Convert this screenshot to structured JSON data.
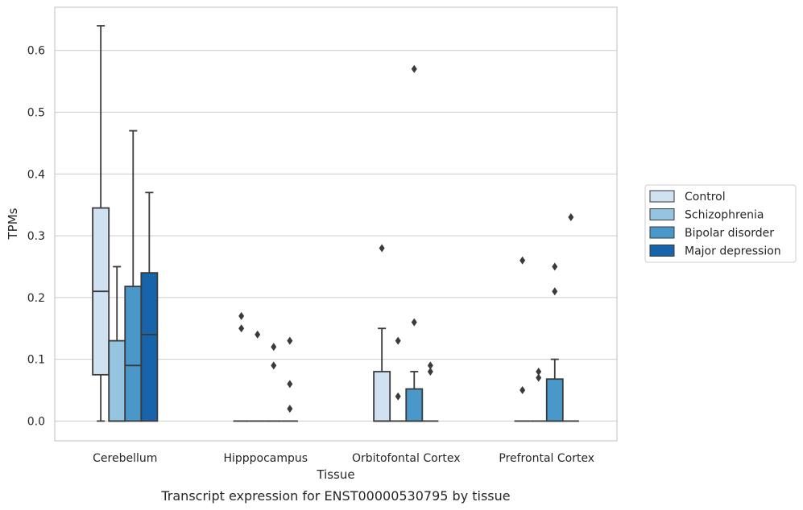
{
  "chart_data": {
    "type": "box",
    "title": "",
    "caption": "Transcript expression for ENST00000530795 by tissue",
    "xlabel": "Tissue",
    "ylabel": "TPMs",
    "ylim": [
      -0.032,
      0.67
    ],
    "yticks": [
      0.0,
      0.1,
      0.2,
      0.3,
      0.4,
      0.5,
      0.6
    ],
    "ytick_labels": [
      "0.0",
      "0.1",
      "0.2",
      "0.3",
      "0.4",
      "0.5",
      "0.6"
    ],
    "grid": "horizontal",
    "legend_position": "right",
    "categories": [
      "Cerebellum",
      "Hipppocampus",
      "Orbitofontal Cortex",
      "Prefrontal Cortex"
    ],
    "series": [
      {
        "name": "Control",
        "color": "#d0e1f2",
        "boxes": [
          {
            "whislo": 0.0,
            "q1": 0.075,
            "med": 0.21,
            "q3": 0.345,
            "whishi": 0.64,
            "fliers": []
          },
          {
            "whislo": 0.0,
            "q1": 0.0,
            "med": 0.0,
            "q3": 0.0,
            "whishi": 0.0,
            "fliers": [
              0.17,
              0.15
            ]
          },
          {
            "whislo": 0.0,
            "q1": 0.0,
            "med": 0.0,
            "q3": 0.08,
            "whishi": 0.15,
            "fliers": [
              0.28
            ]
          },
          {
            "whislo": 0.0,
            "q1": 0.0,
            "med": 0.0,
            "q3": 0.0,
            "whishi": 0.0,
            "fliers": [
              0.26,
              0.05
            ]
          }
        ]
      },
      {
        "name": "Schizophrenia",
        "color": "#94c4df",
        "boxes": [
          {
            "whislo": 0.0,
            "q1": 0.0,
            "med": 0.0,
            "q3": 0.13,
            "whishi": 0.25,
            "fliers": []
          },
          {
            "whislo": 0.0,
            "q1": 0.0,
            "med": 0.0,
            "q3": 0.0,
            "whishi": 0.0,
            "fliers": [
              0.14
            ]
          },
          {
            "whislo": 0.0,
            "q1": 0.0,
            "med": 0.0,
            "q3": 0.0,
            "whishi": 0.0,
            "fliers": [
              0.13,
              0.04
            ]
          },
          {
            "whislo": 0.0,
            "q1": 0.0,
            "med": 0.0,
            "q3": 0.0,
            "whishi": 0.0,
            "fliers": [
              0.08,
              0.07
            ]
          }
        ]
      },
      {
        "name": "Bipolar disorder",
        "color": "#4a98c9",
        "boxes": [
          {
            "whislo": 0.0,
            "q1": 0.0,
            "med": 0.09,
            "q3": 0.218,
            "whishi": 0.47,
            "fliers": []
          },
          {
            "whislo": 0.0,
            "q1": 0.0,
            "med": 0.0,
            "q3": 0.0,
            "whishi": 0.0,
            "fliers": [
              0.12,
              0.09
            ]
          },
          {
            "whislo": 0.0,
            "q1": 0.0,
            "med": 0.0,
            "q3": 0.052,
            "whishi": 0.08,
            "fliers": [
              0.57,
              0.16
            ]
          },
          {
            "whislo": 0.0,
            "q1": 0.0,
            "med": 0.0,
            "q3": 0.068,
            "whishi": 0.1,
            "fliers": [
              0.25,
              0.21
            ]
          }
        ]
      },
      {
        "name": "Major depression",
        "color": "#1764ab",
        "boxes": [
          {
            "whislo": 0.0,
            "q1": 0.0,
            "med": 0.14,
            "q3": 0.24,
            "whishi": 0.37,
            "fliers": []
          },
          {
            "whislo": 0.0,
            "q1": 0.0,
            "med": 0.0,
            "q3": 0.0,
            "whishi": 0.0,
            "fliers": [
              0.13,
              0.06,
              0.02
            ]
          },
          {
            "whislo": 0.0,
            "q1": 0.0,
            "med": 0.0,
            "q3": 0.0,
            "whishi": 0.0,
            "fliers": [
              0.09,
              0.08
            ]
          },
          {
            "whislo": 0.0,
            "q1": 0.0,
            "med": 0.0,
            "q3": 0.0,
            "whishi": 0.0,
            "fliers": [
              0.33
            ]
          }
        ]
      }
    ]
  }
}
